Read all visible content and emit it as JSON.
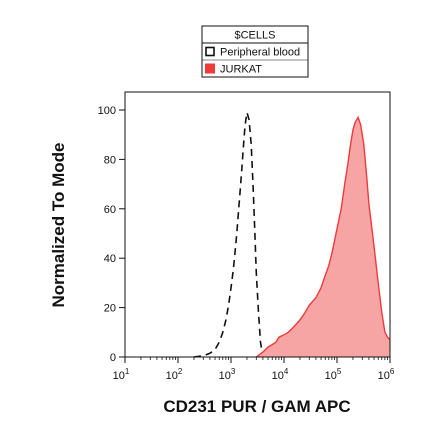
{
  "chart_data": {
    "type": "area",
    "xlabel": "CD231 PUR / GAM APC",
    "ylabel": "Normalized To Mode",
    "x_scale": "log",
    "xlim": [
      10,
      1000000
    ],
    "ylim": [
      0,
      100
    ],
    "x_ticks": [
      {
        "value": 10,
        "base": "10",
        "exp": "1"
      },
      {
        "value": 100,
        "base": "10",
        "exp": "2"
      },
      {
        "value": 1000,
        "base": "10",
        "exp": "3"
      },
      {
        "value": 10000,
        "base": "10",
        "exp": "4"
      },
      {
        "value": 100000,
        "base": "10",
        "exp": "5"
      },
      {
        "value": 1000000,
        "base": "10",
        "exp": "6"
      }
    ],
    "y_ticks": [
      "0",
      "20",
      "40",
      "60",
      "80",
      "100"
    ],
    "legend": {
      "title": "$CELLS",
      "placement": "top-center",
      "entries": [
        {
          "label": "Peripheral blood",
          "swatch": "outline"
        },
        {
          "label": "JURKAT",
          "swatch": "filled"
        }
      ]
    },
    "series": [
      {
        "name": "Peripheral blood",
        "style": "dashed-line",
        "color": "#111111",
        "x": [
          200,
          300,
          400,
          500,
          600,
          700,
          800,
          900,
          1000,
          1100,
          1200,
          1300,
          1400,
          1500,
          1600,
          1700,
          1800,
          1900,
          2000,
          2200,
          2400,
          2600,
          2800,
          3000,
          3300,
          3600,
          4000
        ],
        "y": [
          0,
          0.5,
          1.5,
          3,
          6,
          10,
          15,
          21,
          28,
          35,
          43,
          51,
          60,
          68,
          76,
          84,
          91,
          96,
          99,
          96,
          86,
          70,
          52,
          34,
          18,
          6,
          0
        ]
      },
      {
        "name": "JURKAT",
        "style": "filled-area",
        "color": "#ee3a3a",
        "fill": "#f7a4a4",
        "x": [
          3000,
          4000,
          5000,
          6000,
          7000,
          8000,
          10000,
          12000,
          15000,
          20000,
          25000,
          30000,
          40000,
          50000,
          60000,
          70000,
          80000,
          100000,
          120000,
          140000,
          160000,
          180000,
          200000,
          220000,
          250000,
          280000,
          320000,
          360000,
          400000,
          500000,
          600000,
          700000,
          800000,
          900000,
          1000000
        ],
        "y": [
          0,
          2,
          4,
          5,
          6,
          8,
          9,
          10,
          12,
          15,
          18,
          21,
          24,
          28,
          33,
          37,
          42,
          52,
          60,
          70,
          78,
          86,
          92,
          95,
          97,
          94,
          86,
          74,
          62,
          45,
          30,
          18,
          10,
          8,
          7
        ]
      }
    ],
    "grid": false
  }
}
